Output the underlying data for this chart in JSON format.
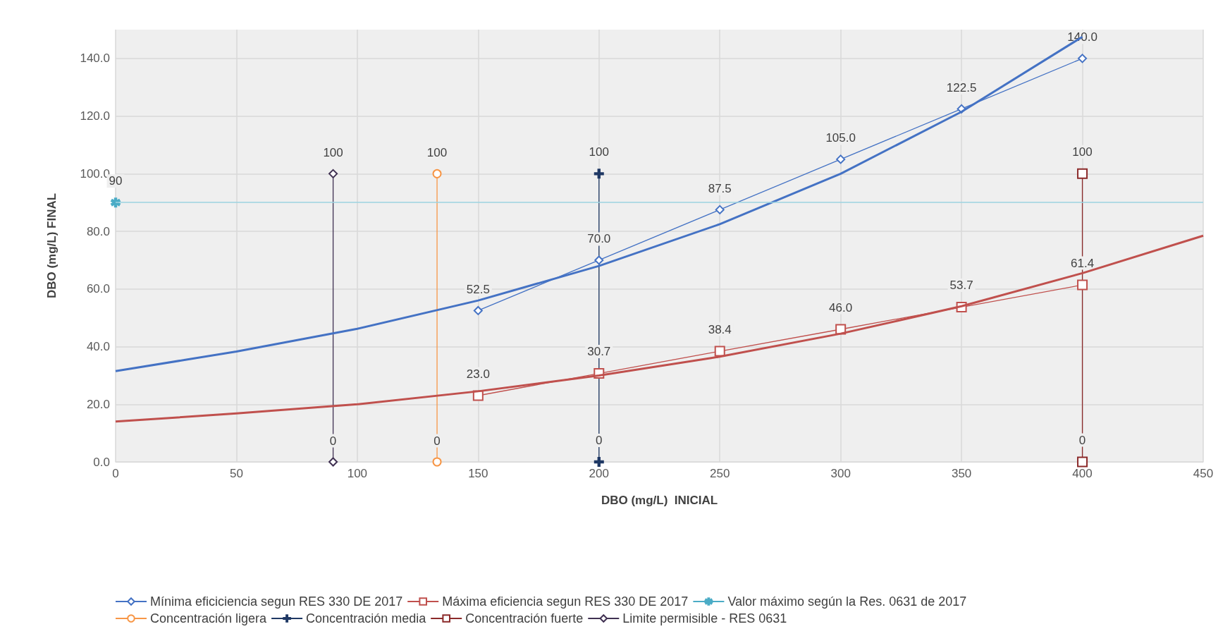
{
  "chart_data": {
    "type": "line",
    "xlabel": "DBO (mg/L)  INICIAL",
    "ylabel": "DBO (mg/L) FINAL",
    "xlim": [
      0,
      450
    ],
    "xticks": [
      0,
      50,
      100,
      150,
      200,
      250,
      300,
      350,
      400,
      450
    ],
    "ylim": [
      0,
      150
    ],
    "yticks": [
      {
        "value": 0,
        "label": "0.0"
      },
      {
        "value": 20,
        "label": "20.0"
      },
      {
        "value": 40,
        "label": "40.0"
      },
      {
        "value": 60,
        "label": "60.0"
      },
      {
        "value": 80,
        "label": "80.0"
      },
      {
        "value": 100,
        "label": "100.0"
      },
      {
        "value": 120,
        "label": "120.0"
      },
      {
        "value": 140,
        "label": "140.0"
      }
    ],
    "grid": true,
    "legend": "bottom",
    "ref_lines": [
      {
        "axis": "y",
        "value": 90,
        "color": "#9dd3e0"
      }
    ],
    "series": [
      {
        "name": "Mínima eficiciencia segun RES 330 DE 2017",
        "color": "#4472c4",
        "marker": "diamond",
        "x": [
          150,
          200,
          250,
          300,
          350,
          400
        ],
        "values": [
          52.5,
          70,
          87.5,
          105,
          122.5,
          140
        ],
        "value_labels": [
          "52.5",
          "70.0",
          "87.5",
          "105.0",
          "122.5",
          "140.0"
        ]
      },
      {
        "name": "Máxima eficiencia segun RES 330 DE 2017",
        "color": "#c0504d",
        "marker": "square",
        "x": [
          150,
          200,
          250,
          300,
          350,
          400
        ],
        "values": [
          23,
          30.7,
          38.4,
          46,
          53.7,
          61.4
        ],
        "value_labels": [
          "23.0",
          "30.7",
          "38.4",
          "46.0",
          "53.7",
          "61.4"
        ]
      },
      {
        "name": "Valor máximo según la Res. 0631 de 2017",
        "color": "#4bacc6",
        "marker": "star",
        "x": [
          0
        ],
        "values": [
          90
        ],
        "value_labels": [
          "90"
        ]
      },
      {
        "name": "Concentración ligera",
        "color": "#f79646",
        "marker": "circle",
        "x": [
          133,
          133
        ],
        "values": [
          0,
          100
        ],
        "value_labels": [
          "0",
          "100"
        ]
      },
      {
        "name": "Concentración media",
        "color": "#1f3864",
        "marker": "cross",
        "x": [
          200,
          200
        ],
        "values": [
          0,
          100
        ],
        "value_labels": [
          "0",
          "100"
        ]
      },
      {
        "name": "Concentración fuerte",
        "color": "#8b2a2a",
        "marker": "square",
        "x": [
          400,
          400
        ],
        "values": [
          0,
          100
        ],
        "value_labels": [
          "0",
          "100"
        ]
      },
      {
        "name": "Limite permisible - RES 0631",
        "color": "#403152",
        "marker": "diamond",
        "x": [
          90,
          90
        ],
        "values": [
          0,
          100
        ],
        "value_labels": [
          "0",
          "100"
        ]
      },
      {
        "color": "#4472c4",
        "marker": "none",
        "x": [
          0,
          50,
          100,
          150,
          200,
          250,
          300,
          350,
          400
        ],
        "values": [
          31.5,
          38.3,
          46.2,
          56,
          68,
          82.5,
          100,
          121.5,
          147.5
        ]
      },
      {
        "color": "#c0504d",
        "marker": "none",
        "x": [
          0,
          50,
          100,
          150,
          200,
          250,
          300,
          350,
          400,
          450
        ],
        "values": [
          14,
          16.8,
          20,
          24.5,
          30,
          36.5,
          44.5,
          54,
          65.5,
          78.5
        ]
      }
    ]
  }
}
